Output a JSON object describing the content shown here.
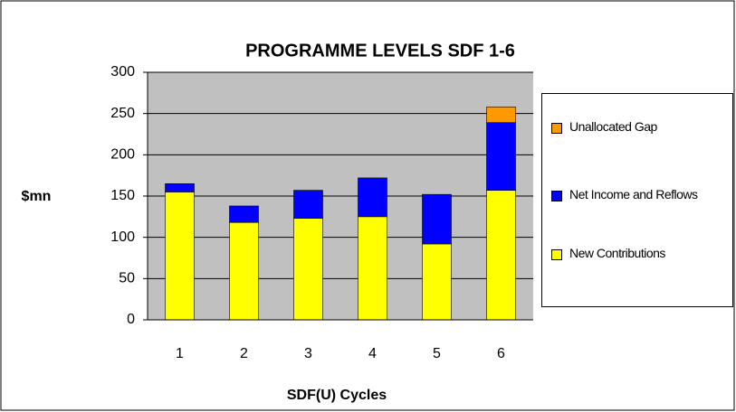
{
  "chart_data": {
    "type": "stacked_bar",
    "title": "PROGRAMME LEVELS SDF 1-6",
    "x_label": "SDF(U) Cycles",
    "y_label": "$mn",
    "categories": [
      "1",
      "2",
      "3",
      "4",
      "5",
      "6"
    ],
    "series": [
      {
        "name": "New Contributions",
        "color": "#ffff00",
        "values": [
          155,
          118,
          123,
          125,
          92,
          157
        ]
      },
      {
        "name": "Net Income and Reflows",
        "color": "#0000ff",
        "values": [
          10,
          20,
          34,
          47,
          60,
          82
        ]
      },
      {
        "name": "Unallocated Gap",
        "color": "#ff9900",
        "values": [
          null,
          null,
          null,
          null,
          null,
          19
        ]
      }
    ],
    "ylim": [
      0,
      300
    ],
    "yticks": [
      0,
      50,
      100,
      150,
      200,
      250,
      300
    ],
    "grid": true,
    "legend": "right"
  }
}
